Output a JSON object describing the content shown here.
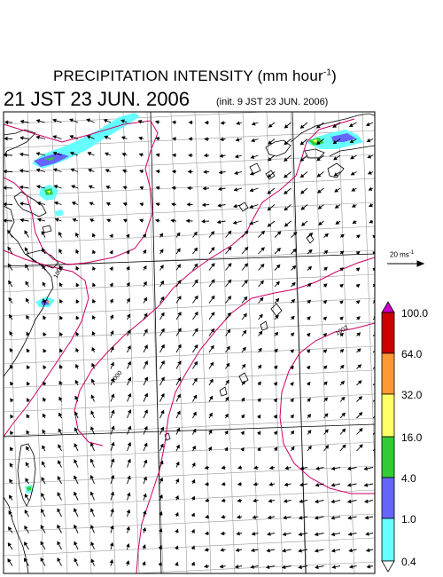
{
  "header": {
    "title_main": "PRECIPITATION INTENSITY (mm hour",
    "title_sup": "-1",
    "title_close": ")",
    "valid_time": "21 JST 23 JUN. 2006",
    "init_time": "(init. 9 JST 23 JUN. 2006)"
  },
  "wind_reference": {
    "label": "20 ms",
    "unit_sup": "-1"
  },
  "colorbar": {
    "levels": [
      "100.0",
      "64.0",
      "32.0",
      "16.0",
      "4.0",
      "1.0",
      "0.4"
    ],
    "colors": [
      "#cc0000",
      "#ff9933",
      "#ffff66",
      "#33cc33",
      "#6666ff",
      "#66ffff"
    ],
    "top_arrow_color": "#cc00cc",
    "bottom_arrow_color": "#ffffff"
  },
  "map": {
    "isobar_color": "#cc0066",
    "isobar_labels": [
      "1002",
      "1000",
      "1006"
    ],
    "coast_color": "#000000",
    "grid_color": "#999999",
    "precip_colors": {
      "light": "#66ffff",
      "moderate": "#6666ff",
      "heavy": "#33cc33",
      "intense": "#ffff66",
      "extreme": "#ff9933"
    }
  }
}
